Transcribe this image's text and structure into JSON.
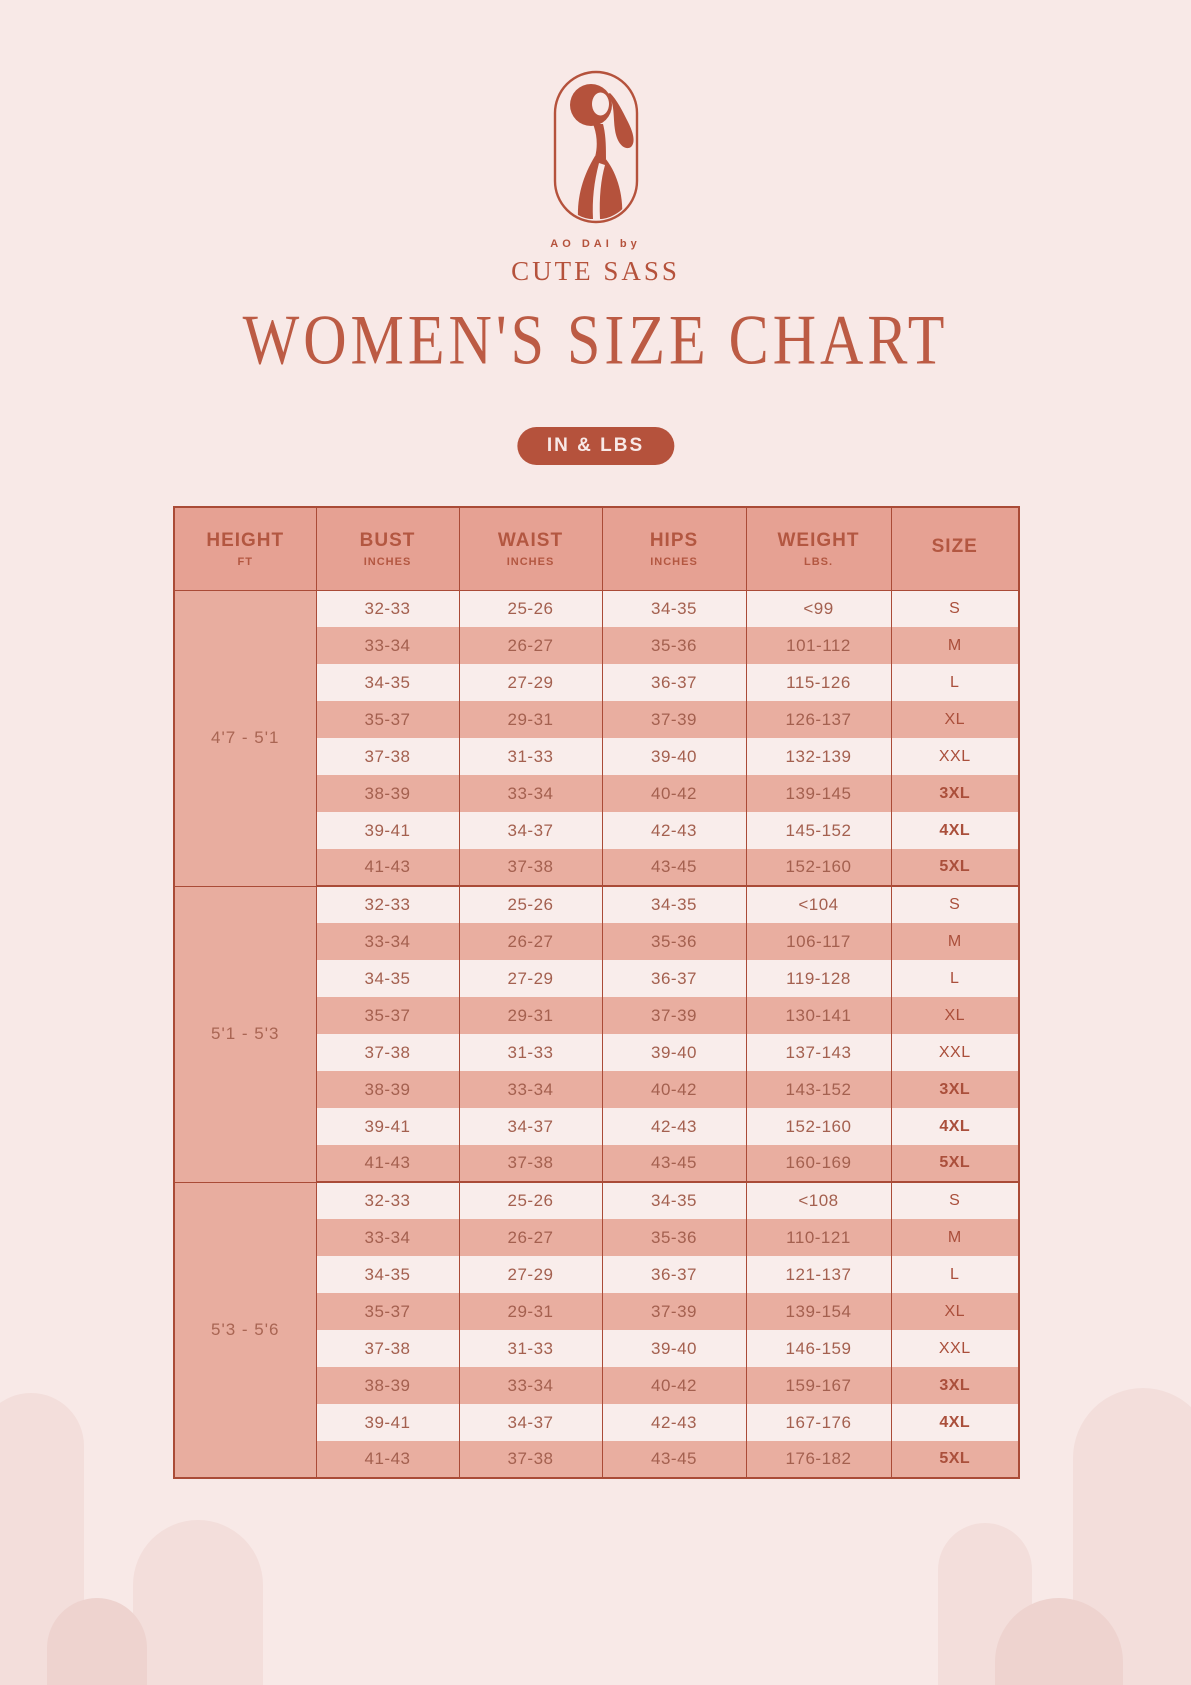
{
  "brand": {
    "logo_sub": "AO DAI by",
    "logo_name": "CUTE SASS"
  },
  "title": "WOMEN'S SIZE CHART",
  "badge": "IN & LBS",
  "table": {
    "columns": [
      {
        "label": "HEIGHT",
        "sub": "FT"
      },
      {
        "label": "BUST",
        "sub": "INCHES"
      },
      {
        "label": "WAIST",
        "sub": "INCHES"
      },
      {
        "label": "HIPS",
        "sub": "INCHES"
      },
      {
        "label": "WEIGHT",
        "sub": "LBS."
      },
      {
        "label": "SIZE",
        "sub": ""
      }
    ],
    "groups": [
      {
        "height": "4'7 - 5'1",
        "rows": [
          [
            "32-33",
            "25-26",
            "34-35",
            "<99",
            "S"
          ],
          [
            "33-34",
            "26-27",
            "35-36",
            "101-112",
            "M"
          ],
          [
            "34-35",
            "27-29",
            "36-37",
            "115-126",
            "L"
          ],
          [
            "35-37",
            "29-31",
            "37-39",
            "126-137",
            "XL"
          ],
          [
            "37-38",
            "31-33",
            "39-40",
            "132-139",
            "XXL"
          ],
          [
            "38-39",
            "33-34",
            "40-42",
            "139-145",
            "3XL"
          ],
          [
            "39-41",
            "34-37",
            "42-43",
            "145-152",
            "4XL"
          ],
          [
            "41-43",
            "37-38",
            "43-45",
            "152-160",
            "5XL"
          ]
        ]
      },
      {
        "height": "5'1 - 5'3",
        "rows": [
          [
            "32-33",
            "25-26",
            "34-35",
            "<104",
            "S"
          ],
          [
            "33-34",
            "26-27",
            "35-36",
            "106-117",
            "M"
          ],
          [
            "34-35",
            "27-29",
            "36-37",
            "119-128",
            "L"
          ],
          [
            "35-37",
            "29-31",
            "37-39",
            "130-141",
            "XL"
          ],
          [
            "37-38",
            "31-33",
            "39-40",
            "137-143",
            "XXL"
          ],
          [
            "38-39",
            "33-34",
            "40-42",
            "143-152",
            "3XL"
          ],
          [
            "39-41",
            "34-37",
            "42-43",
            "152-160",
            "4XL"
          ],
          [
            "41-43",
            "37-38",
            "43-45",
            "160-169",
            "5XL"
          ]
        ]
      },
      {
        "height": "5'3 - 5'6",
        "rows": [
          [
            "32-33",
            "25-26",
            "34-35",
            "<108",
            "S"
          ],
          [
            "33-34",
            "26-27",
            "35-36",
            "110-121",
            "M"
          ],
          [
            "34-35",
            "27-29",
            "36-37",
            "121-137",
            "L"
          ],
          [
            "35-37",
            "29-31",
            "37-39",
            "139-154",
            "XL"
          ],
          [
            "37-38",
            "31-33",
            "39-40",
            "146-159",
            "XXL"
          ],
          [
            "38-39",
            "33-34",
            "40-42",
            "159-167",
            "3XL"
          ],
          [
            "39-41",
            "34-37",
            "42-43",
            "167-176",
            "4XL"
          ],
          [
            "41-43",
            "37-38",
            "43-45",
            "176-182",
            "5XL"
          ]
        ]
      }
    ]
  },
  "colors": {
    "background": "#f8e9e7",
    "accent": "#b5523c",
    "table_border": "#aa4b37",
    "header_pink": "#e6a193",
    "row_dark": "#e9aea0",
    "row_light": "#f9edeb",
    "arch_light": "#f3dedb",
    "arch_dark": "#eed3cf"
  }
}
